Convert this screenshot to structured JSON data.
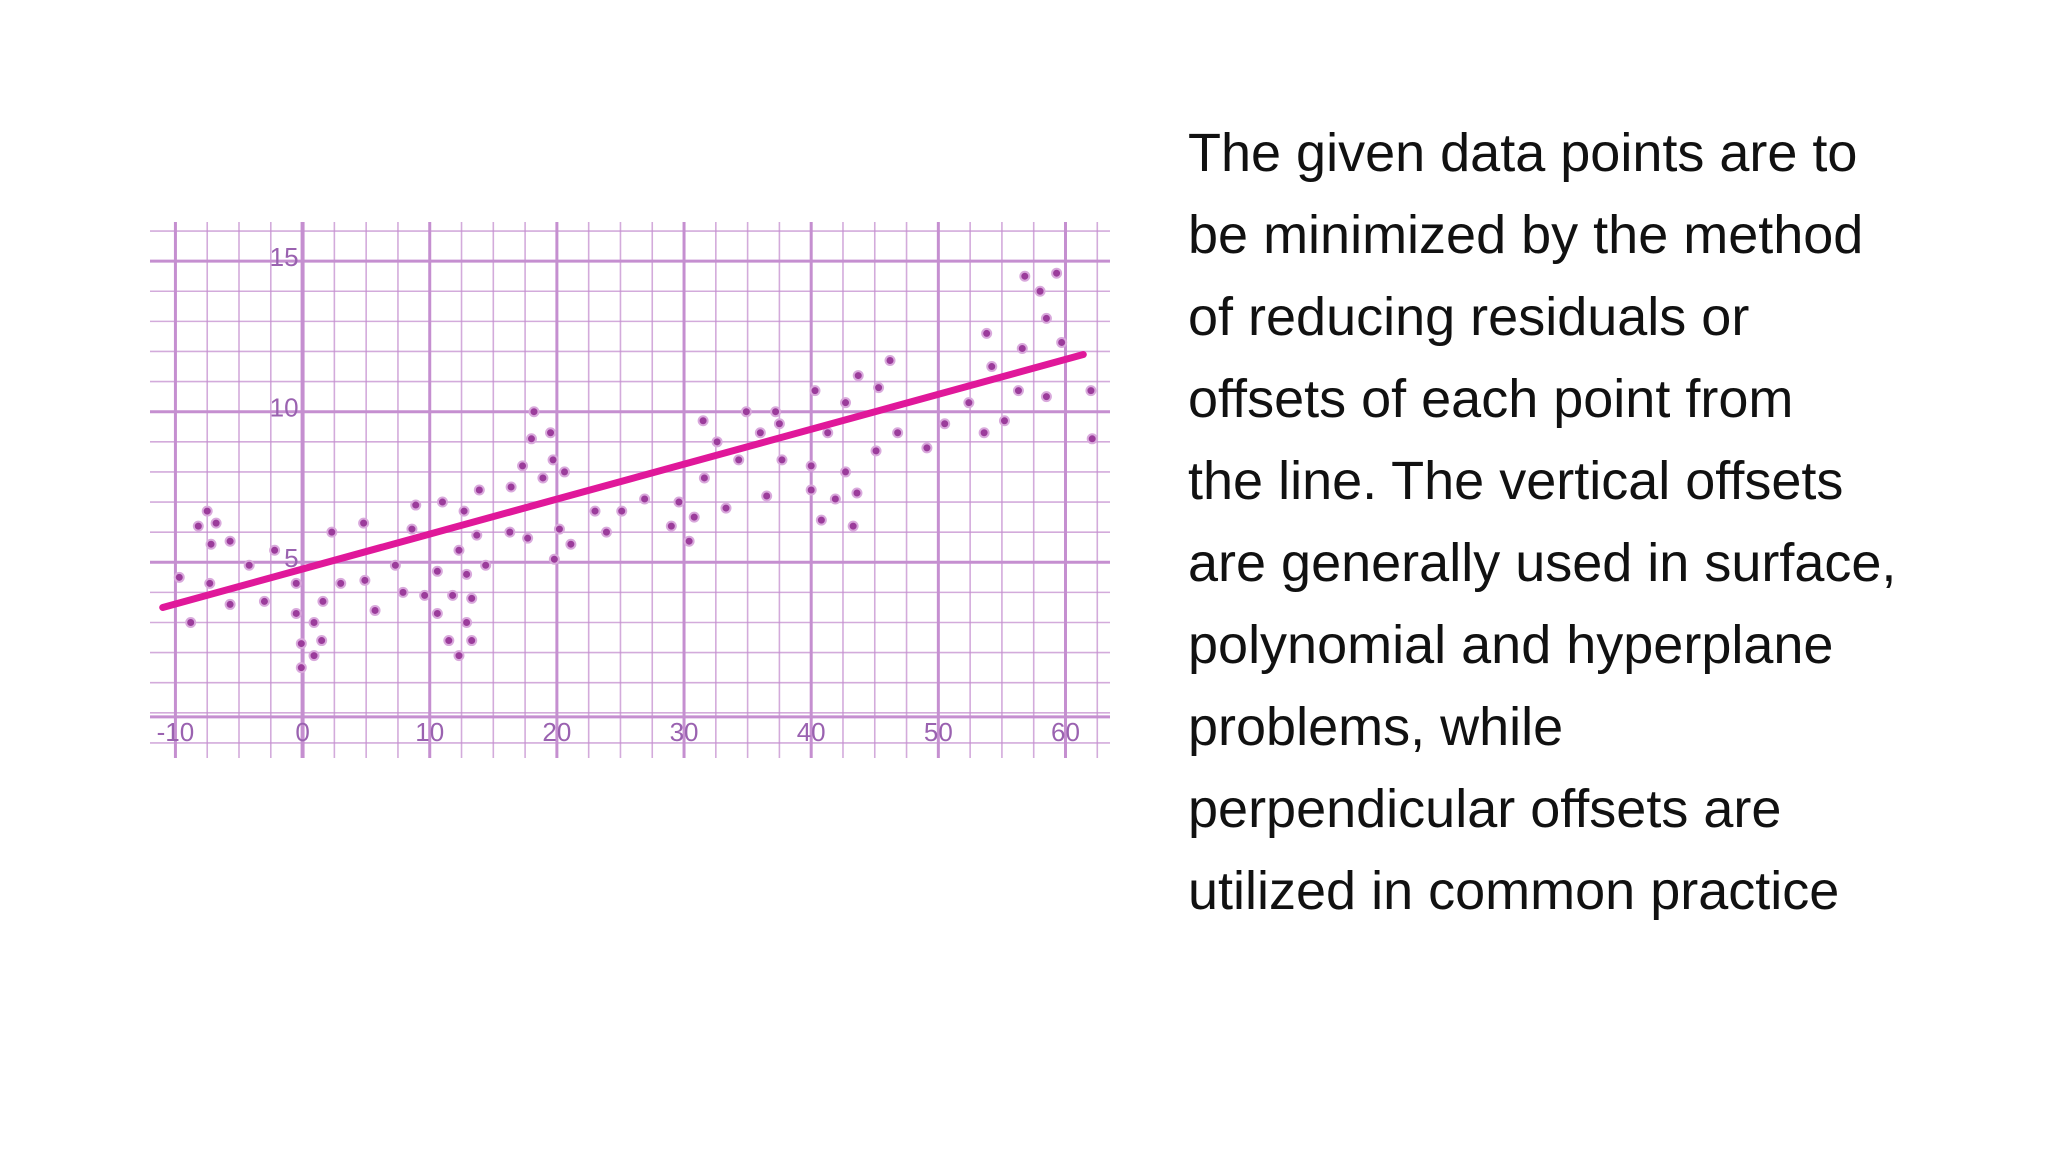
{
  "chart_data": {
    "type": "scatter",
    "xlim": [
      -12,
      63.5
    ],
    "ylim": [
      -1.5,
      16.3
    ],
    "xticks": [
      -10,
      0,
      10,
      20,
      30,
      40,
      50,
      60
    ],
    "yticks": [
      5,
      10,
      15
    ],
    "grid": true,
    "grid_color": "#c58fd0",
    "tick_label_color": "#9a62b0",
    "point_color": "#9b3c9b",
    "x": [
      -9.7,
      -8.8,
      -8.2,
      -7.5,
      -7.2,
      -6.8,
      -7.3,
      -5.7,
      -5.7,
      -4.2,
      -3.0,
      -2.2,
      -0.5,
      -0.5,
      -0.1,
      -0.1,
      0.9,
      0.9,
      1.5,
      1.6,
      2.3,
      3.0,
      4.8,
      4.9,
      5.7,
      7.3,
      7.9,
      8.6,
      8.9,
      9.6,
      10.6,
      10.6,
      11.0,
      11.5,
      11.8,
      12.3,
      12.3,
      12.7,
      12.9,
      12.9,
      13.3,
      13.7,
      13.9,
      14.4,
      13.3,
      16.3,
      16.4,
      17.3,
      17.7,
      18.0,
      18.2,
      18.9,
      19.5,
      19.7,
      19.8,
      20.2,
      20.6,
      21.1,
      23.0,
      23.9,
      25.1,
      26.9,
      29.0,
      29.6,
      30.4,
      30.8,
      31.5,
      31.6,
      32.6,
      33.3,
      34.3,
      34.9,
      36.0,
      36.5,
      37.2,
      37.5,
      37.7,
      40.0,
      40.0,
      40.3,
      40.8,
      41.3,
      41.9,
      42.7,
      42.7,
      43.3,
      43.6,
      43.7,
      45.1,
      45.3,
      46.2,
      46.8,
      49.1,
      50.5,
      52.4,
      53.6,
      53.8,
      54.2,
      55.2,
      56.3,
      56.6,
      56.8,
      58.0,
      58.5,
      58.5,
      59.3,
      59.7,
      62.0,
      62.1
    ],
    "values": [
      4.5,
      3.0,
      6.2,
      6.7,
      5.6,
      6.3,
      4.3,
      5.7,
      3.6,
      4.9,
      3.7,
      5.4,
      4.3,
      3.3,
      2.3,
      1.5,
      3.0,
      1.9,
      2.4,
      3.7,
      6.0,
      4.3,
      6.3,
      4.4,
      3.4,
      4.9,
      4.0,
      6.1,
      6.9,
      3.9,
      4.7,
      3.3,
      7.0,
      2.4,
      3.9,
      5.4,
      1.9,
      6.7,
      4.6,
      3.0,
      2.4,
      5.9,
      7.4,
      4.9,
      3.8,
      6.0,
      7.5,
      8.2,
      5.8,
      9.1,
      10.0,
      7.8,
      9.3,
      8.4,
      5.1,
      6.1,
      8.0,
      5.6,
      6.7,
      6.0,
      6.7,
      7.1,
      6.2,
      7.0,
      5.7,
      6.5,
      9.7,
      7.8,
      9.0,
      6.8,
      8.4,
      10.0,
      9.3,
      7.2,
      10.0,
      9.6,
      8.4,
      8.2,
      7.4,
      10.7,
      6.4,
      9.3,
      7.1,
      8.0,
      10.3,
      6.2,
      7.3,
      11.2,
      8.7,
      10.8,
      11.7,
      9.3,
      8.8,
      9.6,
      10.3,
      9.3,
      12.6,
      11.5,
      9.7,
      10.7,
      12.1,
      14.5,
      14.0,
      13.1,
      10.5,
      14.6,
      12.3,
      10.7,
      9.1
    ],
    "fit_line": {
      "color": "#e0189a",
      "x": [
        -11,
        61.4
      ],
      "values": [
        3.5,
        11.9
      ]
    }
  },
  "body_text": [
    "The given data points are to",
    "be minimized by the method",
    "of reducing residuals or",
    "offsets of each point from",
    "the line. The vertical offsets",
    "are generally used in surface,",
    "polynomial and hyperplane",
    "problems, while",
    "perpendicular offsets are",
    "utilized in common practice"
  ]
}
